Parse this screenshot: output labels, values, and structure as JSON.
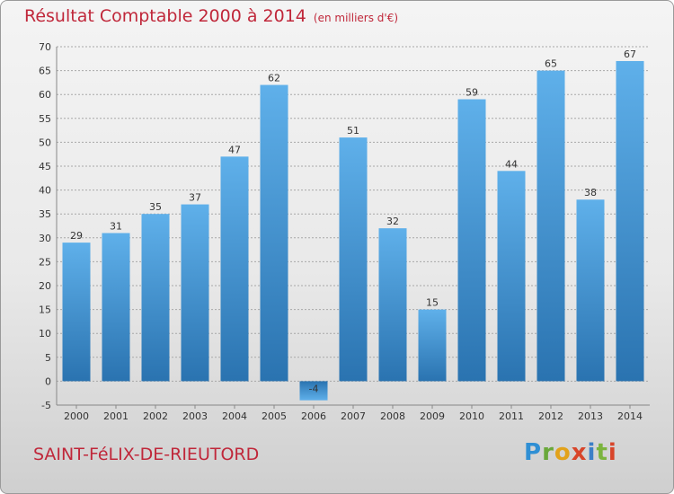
{
  "header": {
    "title": "Résultat Comptable 2000 à 2014",
    "subtitle": "(en milliers d'€)"
  },
  "footer": {
    "commune": "SAINT-FéLIX-DE-RIEUTORD",
    "logo_text": "Proxiti"
  },
  "colors": {
    "bar": "#4a9edc",
    "bar_dark": "#2a73b0",
    "title": "#c0273a",
    "grid": "#a8a8a8"
  },
  "chart_data": {
    "type": "bar",
    "title": "Résultat Comptable 2000 à 2014",
    "subtitle": "(en milliers d'€)",
    "categories": [
      "2000",
      "2001",
      "2002",
      "2003",
      "2004",
      "2005",
      "2006",
      "2007",
      "2008",
      "2009",
      "2010",
      "2011",
      "2012",
      "2013",
      "2014"
    ],
    "values": [
      29,
      31,
      35,
      37,
      47,
      62,
      -4,
      51,
      32,
      15,
      59,
      44,
      65,
      38,
      67
    ],
    "data_labels": [
      "29",
      "31",
      "35",
      "37",
      "47",
      "62",
      "-4",
      "51",
      "32",
      "15",
      "59",
      "44",
      "65",
      "38",
      "67"
    ],
    "ylim": [
      -5,
      70
    ],
    "yticks": [
      -5,
      0,
      5,
      10,
      15,
      20,
      25,
      30,
      35,
      40,
      45,
      50,
      55,
      60,
      65,
      70
    ],
    "grid": true,
    "grid_style": "dashed-horizontal",
    "xlabel": "",
    "ylabel": ""
  }
}
